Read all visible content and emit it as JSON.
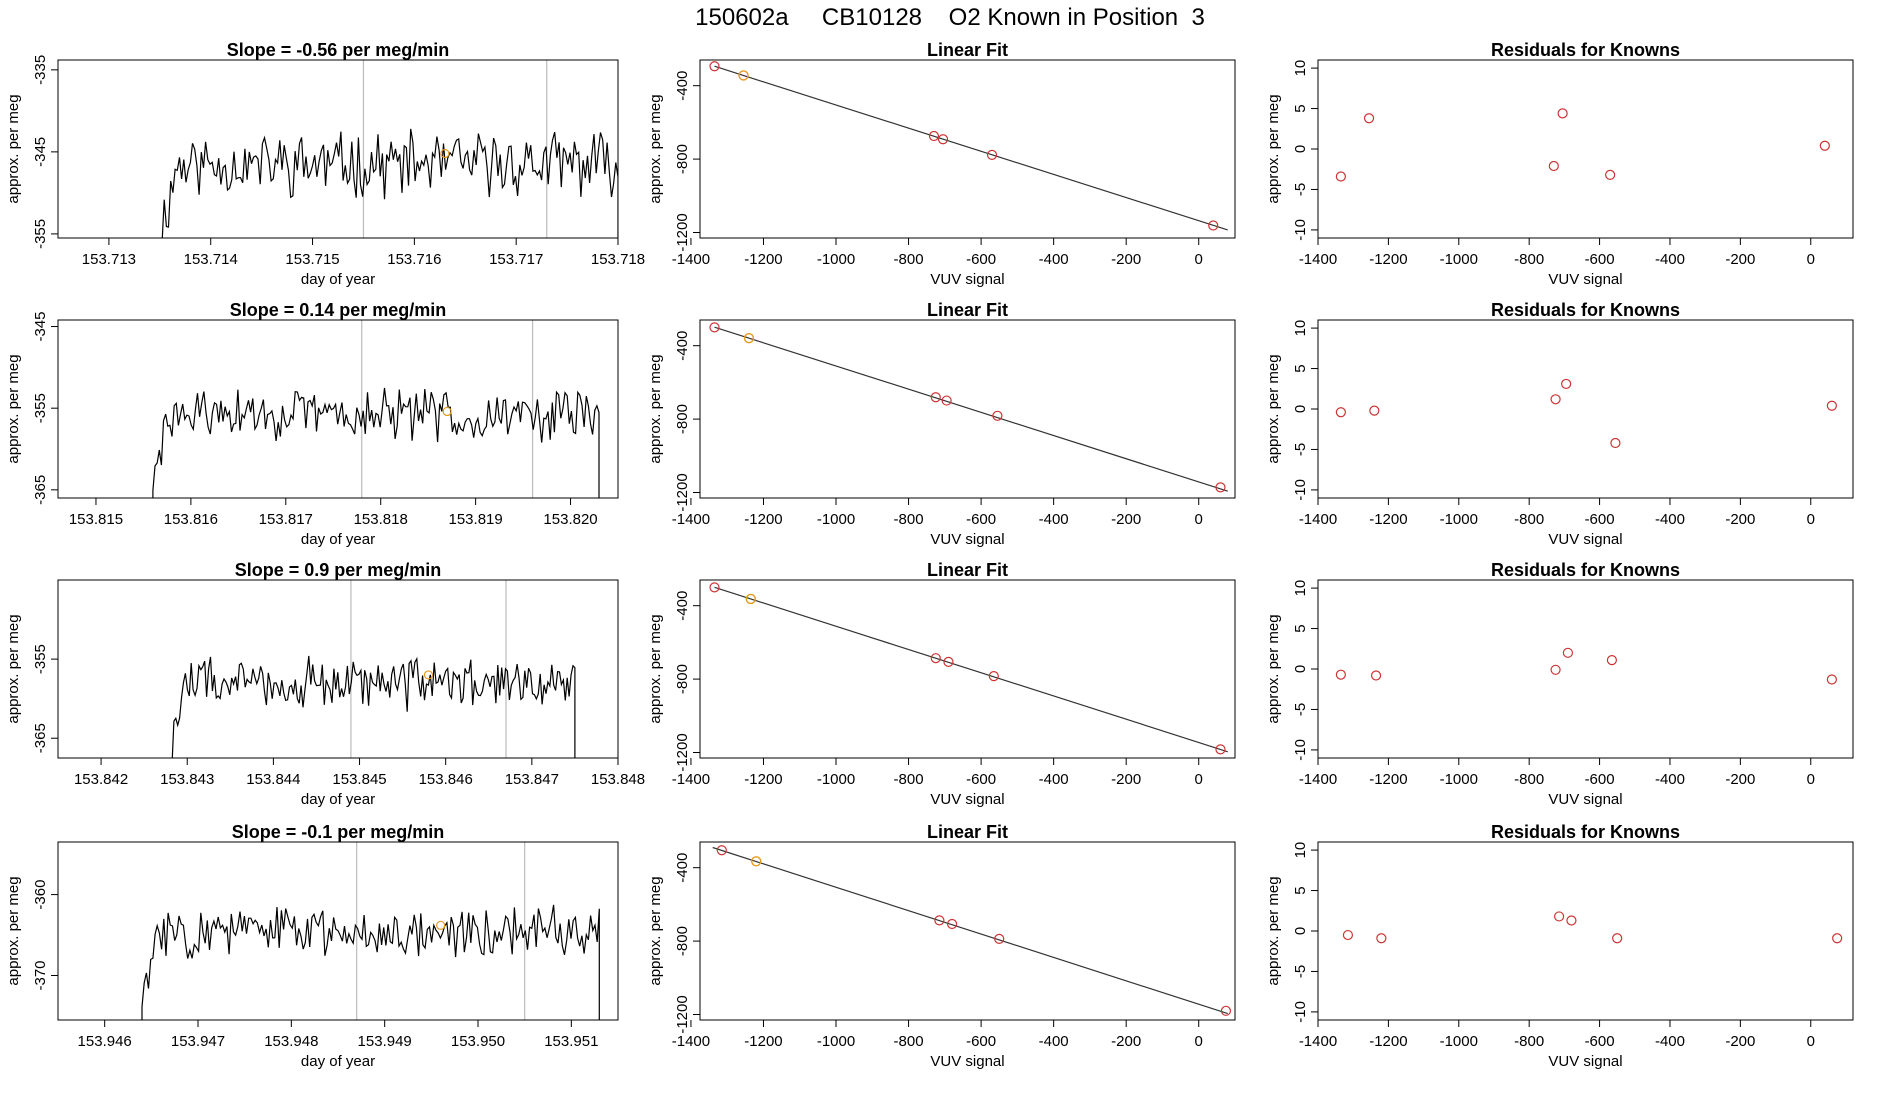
{
  "page": {
    "title": "150602a     CB10128    O2 Known in Position  3"
  },
  "colors": {
    "trace": "#000000",
    "known_points": "#cc3333",
    "highlight_points": "#e69a1a",
    "vertical_markers": "#bbbbbb",
    "fit_line": "#333333"
  },
  "chart_data": [
    {
      "type": "line",
      "row": 1,
      "panel": "time-series",
      "title": "Slope =  -0.56  per meg/min",
      "xlabel": "day of year",
      "ylabel": "approx. per meg",
      "xlim": [
        153.7125,
        153.718
      ],
      "ylim": [
        -355.5,
        -333.8
      ],
      "xticks": [
        153.713,
        153.714,
        153.715,
        153.716,
        153.717,
        153.718
      ],
      "xtick_labels": [
        "153.713",
        "153.714",
        "153.715",
        "153.716",
        "153.717",
        "153.718"
      ],
      "yticks": [
        -355,
        -345,
        -335
      ],
      "ytick_labels": [
        "-355",
        "-345",
        "-335"
      ],
      "trace": {
        "x_start": 153.7135,
        "x_end": 153.718,
        "baseline": -346.5,
        "amp": 3.2,
        "seed": 11
      },
      "vlines": [
        153.7155,
        153.7173
      ],
      "highlight": {
        "x": 153.7163,
        "y": -345.2
      }
    },
    {
      "type": "scatter",
      "row": 1,
      "panel": "linear-fit",
      "title": "Linear Fit",
      "xlabel": "VUV signal",
      "ylabel": "approx. per meg",
      "xlim": [
        -1375,
        100
      ],
      "ylim": [
        -1230,
        -260
      ],
      "xticks": [
        -1400,
        -1200,
        -1000,
        -800,
        -600,
        -400,
        -200,
        0
      ],
      "xtick_labels": [
        "-1400",
        "-1200",
        "-1000",
        "-800",
        "-600",
        "-400",
        "-200",
        "0"
      ],
      "yticks": [
        -1200,
        -800,
        -400
      ],
      "ytick_labels": [
        "-1200",
        "-800",
        "-400"
      ],
      "line": {
        "x": [
          -1335,
          80
        ],
        "y": [
          -294,
          -1186
        ]
      },
      "points": [
        {
          "x": -1335,
          "y": -294
        },
        {
          "x": -730,
          "y": -674
        },
        {
          "x": -705,
          "y": -692
        },
        {
          "x": -570,
          "y": -777
        },
        {
          "x": 40,
          "y": -1162
        }
      ],
      "highlight_points": [
        {
          "x": -1255,
          "y": -344
        }
      ]
    },
    {
      "type": "scatter",
      "row": 1,
      "panel": "residuals",
      "title": "Residuals for Knowns",
      "xlabel": "VUV signal",
      "ylabel": "approx. per meg",
      "xlim": [
        -1400,
        120
      ],
      "ylim": [
        -11,
        11
      ],
      "xticks": [
        -1400,
        -1200,
        -1000,
        -800,
        -600,
        -400,
        -200,
        0
      ],
      "xtick_labels": [
        "-1400",
        "-1200",
        "-1000",
        "-800",
        "-600",
        "-400",
        "-200",
        "0"
      ],
      "yticks": [
        -10,
        -5,
        0,
        5,
        10
      ],
      "ytick_labels": [
        "-10",
        "-5",
        "0",
        "5",
        "10"
      ],
      "points": [
        {
          "x": -1335,
          "y": -3.4
        },
        {
          "x": -1255,
          "y": 3.8
        },
        {
          "x": -730,
          "y": -2.1
        },
        {
          "x": -705,
          "y": 4.4
        },
        {
          "x": -570,
          "y": -3.2
        },
        {
          "x": 40,
          "y": 0.4
        }
      ]
    },
    {
      "type": "line",
      "row": 2,
      "panel": "time-series",
      "title": "Slope =  0.14  per meg/min",
      "xlabel": "day of year",
      "ylabel": "approx. per meg",
      "xlim": [
        153.8146,
        153.8205
      ],
      "ylim": [
        -366.0,
        -344.2
      ],
      "xticks": [
        153.815,
        153.816,
        153.817,
        153.818,
        153.819,
        153.82
      ],
      "xtick_labels": [
        "153.815",
        "153.816",
        "153.817",
        "153.818",
        "153.819",
        "153.820"
      ],
      "yticks": [
        -365,
        -355,
        -345
      ],
      "ytick_labels": [
        "-365",
        "-355",
        "-345"
      ],
      "trace": {
        "x_start": 153.8156,
        "x_end": 153.8203,
        "baseline": -355.8,
        "amp": 2.6,
        "seed": 29
      },
      "vlines": [
        153.8178,
        153.8196
      ],
      "highlight": {
        "x": 153.8187,
        "y": -355.4
      }
    },
    {
      "type": "scatter",
      "row": 2,
      "panel": "linear-fit",
      "title": "Linear Fit",
      "xlabel": "VUV signal",
      "ylabel": "approx. per meg",
      "xlim": [
        -1375,
        100
      ],
      "ylim": [
        -1230,
        -260
      ],
      "xticks": [
        -1400,
        -1200,
        -1000,
        -800,
        -600,
        -400,
        -200,
        0
      ],
      "xtick_labels": [
        "-1400",
        "-1200",
        "-1000",
        "-800",
        "-600",
        "-400",
        "-200",
        "0"
      ],
      "yticks": [
        -1200,
        -800,
        -400
      ],
      "ytick_labels": [
        "-1200",
        "-800",
        "-400"
      ],
      "line": {
        "x": [
          -1335,
          80
        ],
        "y": [
          -299,
          -1193
        ]
      },
      "points": [
        {
          "x": -1335,
          "y": -300
        },
        {
          "x": -725,
          "y": -681
        },
        {
          "x": -695,
          "y": -699
        },
        {
          "x": -555,
          "y": -782
        },
        {
          "x": 60,
          "y": -1172
        }
      ],
      "highlight_points": [
        {
          "x": -1240,
          "y": -359
        }
      ]
    },
    {
      "type": "scatter",
      "row": 2,
      "panel": "residuals",
      "title": "Residuals for Knowns",
      "xlabel": "VUV signal",
      "ylabel": "approx. per meg",
      "xlim": [
        -1400,
        120
      ],
      "ylim": [
        -11,
        11
      ],
      "xticks": [
        -1400,
        -1200,
        -1000,
        -800,
        -600,
        -400,
        -200,
        0
      ],
      "xtick_labels": [
        "-1400",
        "-1200",
        "-1000",
        "-800",
        "-600",
        "-400",
        "-200",
        "0"
      ],
      "yticks": [
        -10,
        -5,
        0,
        5,
        10
      ],
      "ytick_labels": [
        "-10",
        "-5",
        "0",
        "5",
        "10"
      ],
      "points": [
        {
          "x": -1335,
          "y": -0.4
        },
        {
          "x": -1240,
          "y": -0.2
        },
        {
          "x": -725,
          "y": 1.2
        },
        {
          "x": -695,
          "y": 3.1
        },
        {
          "x": -555,
          "y": -4.2
        },
        {
          "x": 60,
          "y": 0.4
        }
      ]
    },
    {
      "type": "line",
      "row": 3,
      "panel": "time-series",
      "title": "Slope =  0.9  per meg/min",
      "xlabel": "day of year",
      "ylabel": "approx. per meg",
      "xlim": [
        153.8415,
        153.848
      ],
      "ylim": [
        -367.5,
        -345.0
      ],
      "xticks": [
        153.842,
        153.843,
        153.844,
        153.845,
        153.846,
        153.847,
        153.848
      ],
      "xtick_labels": [
        "153.842",
        "153.843",
        "153.844",
        "153.845",
        "153.846",
        "153.847",
        "153.848"
      ],
      "yticks": [
        -365,
        -355
      ],
      "ytick_labels": [
        "-365",
        "-355"
      ],
      "trace": {
        "x_start": 153.8428,
        "x_end": 153.8475,
        "baseline": -358.0,
        "amp": 2.8,
        "seed": 47
      },
      "vlines": [
        153.8449,
        153.8467
      ],
      "highlight": {
        "x": 153.8458,
        "y": -357.0
      }
    },
    {
      "type": "scatter",
      "row": 3,
      "panel": "linear-fit",
      "title": "Linear Fit",
      "xlabel": "VUV signal",
      "ylabel": "approx. per meg",
      "xlim": [
        -1375,
        100
      ],
      "ylim": [
        -1230,
        -260
      ],
      "xticks": [
        -1400,
        -1200,
        -1000,
        -800,
        -600,
        -400,
        -200,
        0
      ],
      "xtick_labels": [
        "-1400",
        "-1200",
        "-1000",
        "-800",
        "-600",
        "-400",
        "-200",
        "0"
      ],
      "yticks": [
        -1200,
        -800,
        -400
      ],
      "ytick_labels": [
        "-1200",
        "-800",
        "-400"
      ],
      "line": {
        "x": [
          -1335,
          80
        ],
        "y": [
          -300,
          -1196
        ]
      },
      "points": [
        {
          "x": -1335,
          "y": -300
        },
        {
          "x": -725,
          "y": -686
        },
        {
          "x": -690,
          "y": -706
        },
        {
          "x": -565,
          "y": -784
        },
        {
          "x": 60,
          "y": -1183
        }
      ],
      "highlight_points": [
        {
          "x": -1235,
          "y": -363
        }
      ]
    },
    {
      "type": "scatter",
      "row": 3,
      "panel": "residuals",
      "title": "Residuals for Knowns",
      "xlabel": "VUV signal",
      "ylabel": "approx. per meg",
      "xlim": [
        -1400,
        120
      ],
      "ylim": [
        -11,
        11
      ],
      "xticks": [
        -1400,
        -1200,
        -1000,
        -800,
        -600,
        -400,
        -200,
        0
      ],
      "xtick_labels": [
        "-1400",
        "-1200",
        "-1000",
        "-800",
        "-600",
        "-400",
        "-200",
        "0"
      ],
      "yticks": [
        -10,
        -5,
        0,
        5,
        10
      ],
      "ytick_labels": [
        "-10",
        "-5",
        "0",
        "5",
        "10"
      ],
      "points": [
        {
          "x": -1335,
          "y": -0.7
        },
        {
          "x": -1235,
          "y": -0.8
        },
        {
          "x": -725,
          "y": -0.1
        },
        {
          "x": -690,
          "y": 2.0
        },
        {
          "x": -565,
          "y": 1.1
        },
        {
          "x": 60,
          "y": -1.3
        }
      ]
    },
    {
      "type": "line",
      "row": 4,
      "panel": "time-series",
      "title": "Slope =  -0.1  per meg/min",
      "xlabel": "day of year",
      "ylabel": "approx. per meg",
      "xlim": [
        153.9455,
        153.9515
      ],
      "ylim": [
        -375.5,
        -353.5
      ],
      "xticks": [
        153.946,
        153.947,
        153.948,
        153.949,
        153.95,
        153.951
      ],
      "xtick_labels": [
        "153.946",
        "153.947",
        "153.948",
        "153.949",
        "153.950",
        "153.951"
      ],
      "yticks": [
        -370,
        -360
      ],
      "ytick_labels": [
        "-370",
        "-360"
      ],
      "trace": {
        "x_start": 153.9464,
        "x_end": 153.9513,
        "baseline": -364.5,
        "amp": 2.6,
        "seed": 83
      },
      "vlines": [
        153.9487,
        153.9505
      ],
      "highlight": {
        "x": 153.9496,
        "y": -363.8
      }
    },
    {
      "type": "scatter",
      "row": 4,
      "panel": "linear-fit",
      "title": "Linear Fit",
      "xlabel": "VUV signal",
      "ylabel": "approx. per meg",
      "xlim": [
        -1375,
        100
      ],
      "ylim": [
        -1230,
        -260
      ],
      "xticks": [
        -1400,
        -1200,
        -1000,
        -800,
        -600,
        -400,
        -200,
        0
      ],
      "xtick_labels": [
        "-1400",
        "-1200",
        "-1000",
        "-800",
        "-600",
        "-400",
        "-200",
        "0"
      ],
      "yticks": [
        -1200,
        -800,
        -400
      ],
      "ytick_labels": [
        "-1200",
        "-800",
        "-400"
      ],
      "line": {
        "x": [
          -1340,
          80
        ],
        "y": [
          -290,
          -1195
        ]
      },
      "points": [
        {
          "x": -1315,
          "y": -305
        },
        {
          "x": -715,
          "y": -687
        },
        {
          "x": -680,
          "y": -707
        },
        {
          "x": -550,
          "y": -788
        },
        {
          "x": 75,
          "y": -1180
        }
      ],
      "highlight_points": [
        {
          "x": -1220,
          "y": -365
        }
      ]
    },
    {
      "type": "scatter",
      "row": 4,
      "panel": "residuals",
      "title": "Residuals for Knowns",
      "xlabel": "VUV signal",
      "ylabel": "approx. per meg",
      "xlim": [
        -1400,
        120
      ],
      "ylim": [
        -11,
        11
      ],
      "xticks": [
        -1400,
        -1200,
        -1000,
        -800,
        -600,
        -400,
        -200,
        0
      ],
      "xtick_labels": [
        "-1400",
        "-1200",
        "-1000",
        "-800",
        "-600",
        "-400",
        "-200",
        "0"
      ],
      "yticks": [
        -10,
        -5,
        0,
        5,
        10
      ],
      "ytick_labels": [
        "-10",
        "-5",
        "0",
        "5",
        "10"
      ],
      "points": [
        {
          "x": -1315,
          "y": -0.5
        },
        {
          "x": -1220,
          "y": -0.9
        },
        {
          "x": -715,
          "y": 1.8
        },
        {
          "x": -680,
          "y": 1.3
        },
        {
          "x": -550,
          "y": -0.9
        },
        {
          "x": 75,
          "y": -0.9
        }
      ]
    }
  ]
}
